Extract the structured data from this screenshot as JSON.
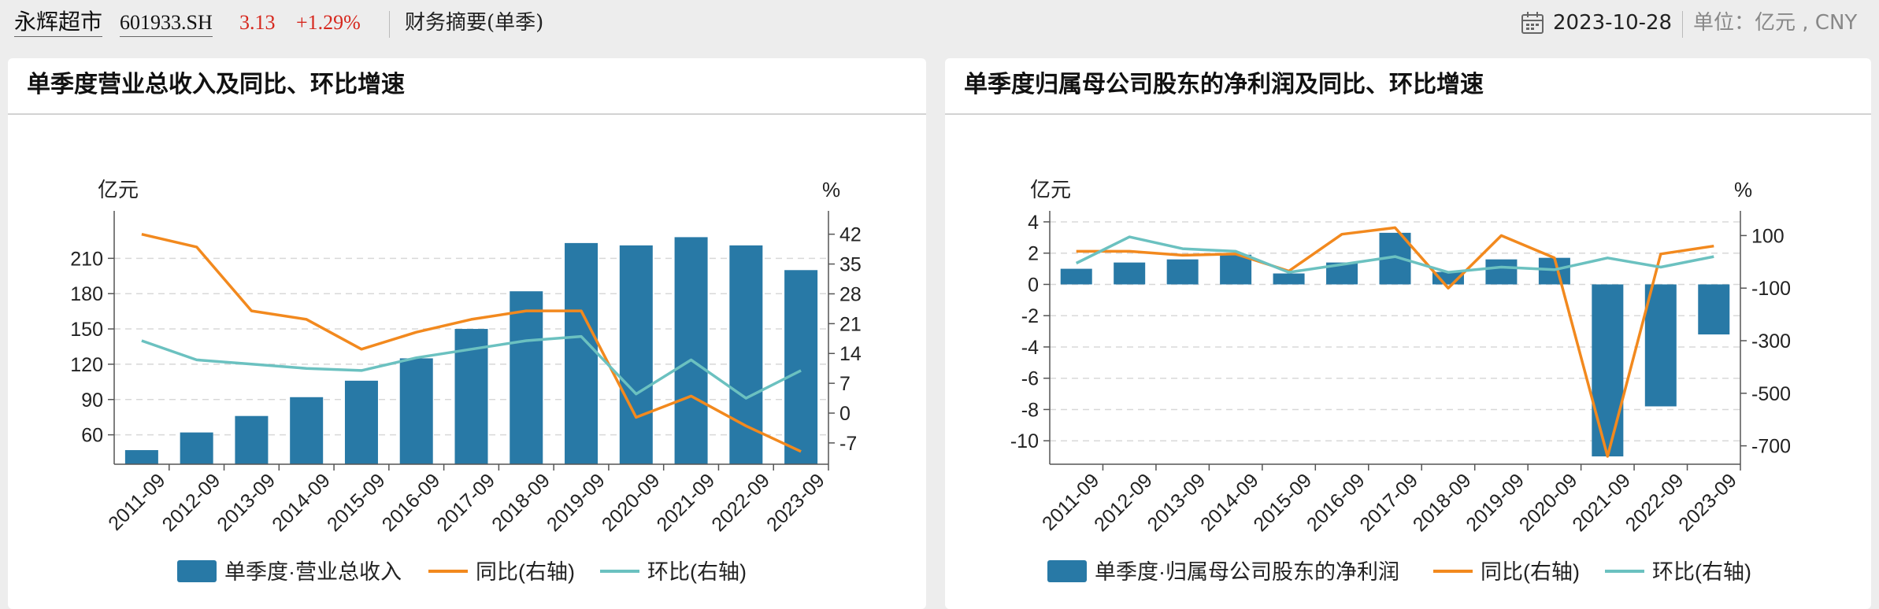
{
  "header": {
    "stock_name": "永辉超市",
    "stock_code": "601933.SH",
    "price": "3.13",
    "change": "+1.29%",
    "section": "财务摘要(单季)",
    "date": "2023-10-28",
    "unit": "单位：亿元 , CNY"
  },
  "colors": {
    "bar": "#2879a6",
    "yoy": "#f2891e",
    "qoq": "#6bc1c0",
    "up": "#d6281e"
  },
  "charts": [
    {
      "title": "单季度营业总收入及同比、环比增速",
      "left_unit": "亿元",
      "right_unit": "%",
      "legend": [
        "单季度·营业总收入",
        "同比(右轴)",
        "环比(右轴)"
      ]
    },
    {
      "title": "单季度归属母公司股东的净利润及同比、环比增速",
      "left_unit": "亿元",
      "right_unit": "%",
      "legend": [
        "单季度·归属母公司股东的净利润",
        "同比(右轴)",
        "环比(右轴)"
      ]
    }
  ],
  "chart_data": [
    {
      "type": "bar",
      "title": "单季度营业总收入及同比、环比增速",
      "categories": [
        "2011-09",
        "2012-09",
        "2013-09",
        "2014-09",
        "2015-09",
        "2016-09",
        "2017-09",
        "2018-09",
        "2019-09",
        "2020-09",
        "2021-09",
        "2022-09",
        "2023-09"
      ],
      "series": [
        {
          "name": "单季度·营业总收入",
          "axis": "left",
          "values": [
            47,
            62,
            76,
            92,
            106,
            125,
            150,
            182,
            223,
            221,
            228,
            221,
            200
          ]
        },
        {
          "name": "同比(右轴)",
          "axis": "right",
          "type": "line",
          "values": [
            42,
            39,
            24,
            22,
            15,
            19,
            22,
            24,
            24,
            -1,
            4,
            -3,
            -9
          ]
        },
        {
          "name": "环比(右轴)",
          "axis": "right",
          "type": "line",
          "values": [
            17,
            12.5,
            11.5,
            10.5,
            10,
            13,
            15,
            17,
            18,
            4.5,
            12.5,
            3.5,
            10
          ]
        }
      ],
      "y_left": {
        "ticks": [
          60,
          90,
          120,
          150,
          180,
          210
        ],
        "range": [
          35,
          245
        ]
      },
      "y_right": {
        "ticks": [
          -7,
          0,
          7,
          14,
          21,
          28,
          35,
          42
        ],
        "range": [
          -12,
          46
        ]
      },
      "grid": true,
      "legend_position": "bottom"
    },
    {
      "type": "bar",
      "title": "单季度归属母公司股东的净利润及同比、环比增速",
      "categories": [
        "2011-09",
        "2012-09",
        "2013-09",
        "2014-09",
        "2015-09",
        "2016-09",
        "2017-09",
        "2018-09",
        "2019-09",
        "2020-09",
        "2021-09",
        "2022-09",
        "2023-09"
      ],
      "series": [
        {
          "name": "单季度·归属母公司股东的净利润",
          "axis": "left",
          "values": [
            1.0,
            1.4,
            1.6,
            1.9,
            0.7,
            1.4,
            3.3,
            0.8,
            1.6,
            1.7,
            -11.0,
            -7.8,
            -3.2
          ]
        },
        {
          "name": "同比(右轴)",
          "axis": "right",
          "type": "line",
          "values": [
            40,
            40,
            25,
            30,
            -35,
            105,
            130,
            -100,
            100,
            15,
            -740,
            30,
            60
          ]
        },
        {
          "name": "环比(右轴)",
          "axis": "right",
          "type": "line",
          "values": [
            -5,
            95,
            50,
            40,
            -40,
            -10,
            20,
            -40,
            -20,
            -30,
            15,
            -20,
            20
          ]
        }
      ],
      "y_left": {
        "ticks": [
          -10,
          -8,
          -6,
          -4,
          -2,
          0,
          2,
          4
        ],
        "range": [
          -11.5,
          4.3
        ]
      },
      "y_right": {
        "ticks": [
          -700,
          -500,
          -300,
          -100,
          100
        ],
        "range": [
          -770,
          170
        ]
      },
      "grid": true,
      "legend_position": "bottom"
    }
  ]
}
